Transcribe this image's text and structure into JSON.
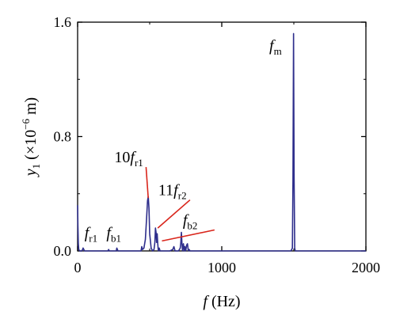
{
  "chart_data": {
    "type": "line",
    "title": "",
    "xlabel": {
      "var": "f",
      "unit": "(Hz)"
    },
    "ylabel": {
      "var": "y",
      "sub": "1",
      "unit_open": "(×10",
      "exp": "−6",
      "unit_close": " m)"
    },
    "xlim": [
      0,
      2000
    ],
    "ylim": [
      0,
      1.6
    ],
    "x_ticks": [
      0,
      1000,
      2000
    ],
    "x_tick_labels": [
      "0",
      "1000",
      "2000"
    ],
    "y_ticks": [
      0,
      0.8,
      1.6
    ],
    "y_tick_labels": [
      "0.0",
      "0.8",
      "1.6"
    ],
    "grid": false,
    "line_color": "#2e2e8c",
    "annotation_line_color": "#d9261c",
    "series": [
      {
        "x": [
          0,
          2,
          5,
          8,
          14,
          30,
          38,
          48,
          55,
          60,
          80,
          100,
          140,
          180,
          210,
          215,
          220,
          250,
          268,
          272,
          276,
          280,
          300,
          340,
          380,
          420,
          440,
          445,
          450,
          460,
          470,
          478,
          485,
          490,
          495,
          500,
          510,
          520,
          530,
          536,
          540,
          544,
          548,
          552,
          556,
          560,
          566,
          572,
          580,
          600,
          640,
          660,
          668,
          676,
          700,
          712,
          716,
          720,
          724,
          728,
          734,
          740,
          744,
          750,
          756,
          762,
          768,
          774,
          780,
          800,
          860,
          920,
          1000,
          1100,
          1200,
          1300,
          1400,
          1480,
          1490,
          1494,
          1498,
          1502,
          1506,
          1510,
          1520,
          1600,
          1800,
          2000
        ],
        "y": [
          0.32,
          0.18,
          0.05,
          0.01,
          0.0,
          0.0,
          0.02,
          0.0,
          0.0,
          0.0,
          0.0,
          0.0,
          0.0,
          0.0,
          0.0,
          0.01,
          0.0,
          0.0,
          0.0,
          0.02,
          0.01,
          0.0,
          0.0,
          0.0,
          0.0,
          0.0,
          0.0,
          0.03,
          0.01,
          0.02,
          0.08,
          0.22,
          0.35,
          0.38,
          0.3,
          0.12,
          0.02,
          0.0,
          0.01,
          0.06,
          0.16,
          0.13,
          0.06,
          0.12,
          0.05,
          0.0,
          0.02,
          0.0,
          0.0,
          0.0,
          0.0,
          0.01,
          0.03,
          0.0,
          0.0,
          0.02,
          0.06,
          0.13,
          0.05,
          0.0,
          0.05,
          0.0,
          0.03,
          0.0,
          0.04,
          0.05,
          0.0,
          0.01,
          0.0,
          0.0,
          0.0,
          0.0,
          0.0,
          0.0,
          0.0,
          0.0,
          0.0,
          0.0,
          0.02,
          0.5,
          1.52,
          0.5,
          0.02,
          0.0,
          0.0,
          0.0,
          0.0,
          0.0
        ]
      }
    ],
    "annotations": [
      {
        "base": "f",
        "sub": "r1",
        "coef": "",
        "at": [
          30,
          0.03
        ],
        "label_pos": [
          48,
          0.09
        ],
        "leader": false
      },
      {
        "base": "f",
        "sub": "b1",
        "coef": "",
        "at": [
          272,
          0.03
        ],
        "label_pos": [
          200,
          0.09
        ],
        "leader": false
      },
      {
        "base": "f",
        "sub": "r1",
        "coef": "10",
        "at": [
          490,
          0.37
        ],
        "label_pos": [
          255,
          0.62
        ],
        "leader": true
      },
      {
        "base": "f",
        "sub": "r2",
        "coef": "11",
        "at": [
          556,
          0.16
        ],
        "label_pos": [
          560,
          0.39
        ],
        "leader": true
      },
      {
        "base": "f",
        "sub": "b2",
        "coef": "",
        "at": [
          585,
          0.07
        ],
        "label_pos": [
          730,
          0.18
        ],
        "leader": true
      },
      {
        "base": "f",
        "sub": "m",
        "coef": "",
        "at": [
          1498,
          1.52
        ],
        "label_pos": [
          1330,
          1.4
        ],
        "leader": false
      }
    ]
  }
}
